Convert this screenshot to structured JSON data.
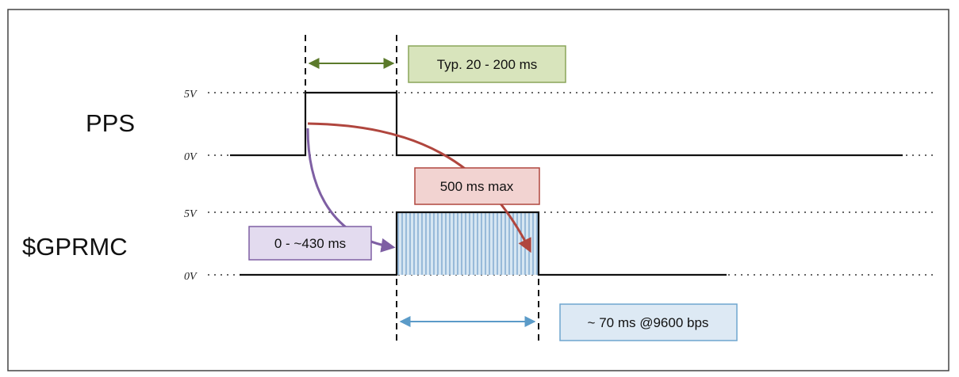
{
  "diagram": {
    "signals": [
      {
        "name": "PPS",
        "high_label": "5V",
        "low_label": "0V"
      },
      {
        "name": "$GPRMC",
        "high_label": "5V",
        "low_label": "0V"
      }
    ],
    "annotations": {
      "pulse_width": {
        "text": "Typ. 20 - 200 ms",
        "color": "#5b7a2b",
        "fill": "#d8e4bc",
        "stroke": "#8aa55a"
      },
      "nmea_delay_max": {
        "text": "500 ms max",
        "color": "#b0463e",
        "fill": "#f2d3d1",
        "stroke": "#b0463e"
      },
      "nmea_delay_typ": {
        "text": "0 - ~430 ms",
        "color": "#7e5fa3",
        "fill": "#e3dbef",
        "stroke": "#7e5fa3"
      },
      "nmea_duration": {
        "text": "~ 70 ms @9600 bps",
        "color": "#5b9bc8",
        "fill": "#dde9f4",
        "stroke": "#6fa6cf"
      }
    },
    "colors": {
      "frame": "#444444",
      "signal": "#111111",
      "data_fill": "#d6e6f2",
      "data_hatch": "#5b8fc0"
    }
  }
}
